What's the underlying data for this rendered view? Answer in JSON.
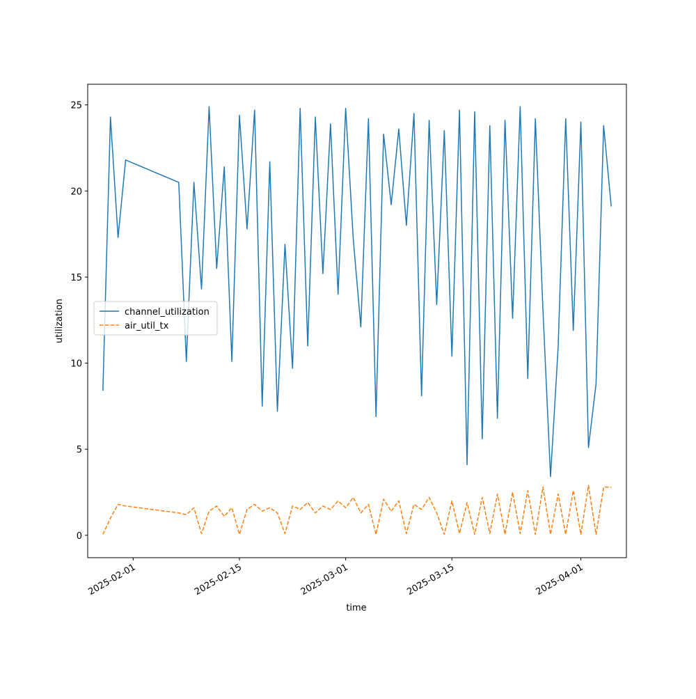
{
  "chart_data": {
    "type": "line",
    "xlabel": "time",
    "ylabel": "utilization",
    "x": [
      "2025-01-28",
      "2025-01-29",
      "2025-01-30",
      "2025-01-31",
      "2025-02-07",
      "2025-02-08",
      "2025-02-09",
      "2025-02-10",
      "2025-02-11",
      "2025-02-12",
      "2025-02-13",
      "2025-02-14",
      "2025-02-15",
      "2025-02-16",
      "2025-02-17",
      "2025-02-18",
      "2025-02-19",
      "2025-02-20",
      "2025-02-21",
      "2025-02-22",
      "2025-02-23",
      "2025-02-24",
      "2025-02-25",
      "2025-02-26",
      "2025-02-27",
      "2025-02-28",
      "2025-03-01",
      "2025-03-02",
      "2025-03-03",
      "2025-03-04",
      "2025-03-05",
      "2025-03-06",
      "2025-03-07",
      "2025-03-08",
      "2025-03-09",
      "2025-03-10",
      "2025-03-11",
      "2025-03-12",
      "2025-03-13",
      "2025-03-14",
      "2025-03-15",
      "2025-03-16",
      "2025-03-17",
      "2025-03-18",
      "2025-03-19",
      "2025-03-20",
      "2025-03-21",
      "2025-03-22",
      "2025-03-23",
      "2025-03-24",
      "2025-03-25",
      "2025-03-26",
      "2025-03-27",
      "2025-03-28",
      "2025-03-29",
      "2025-03-30",
      "2025-03-31",
      "2025-04-01",
      "2025-04-02",
      "2025-04-03",
      "2025-04-04",
      "2025-04-05"
    ],
    "series": [
      {
        "name": "channel_utilization",
        "color": "#1f77b4",
        "dash": false,
        "values": [
          8.4,
          24.3,
          17.3,
          21.8,
          20.5,
          10.1,
          20.5,
          14.3,
          24.9,
          15.5,
          21.4,
          10.1,
          24.4,
          17.8,
          24.7,
          7.5,
          21.7,
          7.2,
          16.9,
          9.7,
          24.8,
          11.0,
          24.3,
          15.2,
          23.9,
          14.0,
          24.8,
          17.2,
          12.1,
          24.2,
          6.9,
          23.3,
          19.2,
          23.6,
          18.0,
          24.5,
          8.1,
          24.1,
          13.4,
          23.5,
          10.4,
          24.7,
          4.1,
          24.6,
          5.6,
          23.8,
          6.8,
          24.1,
          12.6,
          24.9,
          9.1,
          24.2,
          13.1,
          3.4,
          10.9,
          24.2,
          11.9,
          24.0,
          5.1,
          8.8,
          23.8,
          19.1
        ]
      },
      {
        "name": "air_util_tx",
        "color": "#ff7f0e",
        "dash": true,
        "values": [
          0.05,
          1.0,
          1.8,
          1.7,
          1.3,
          1.2,
          1.6,
          0.1,
          1.4,
          1.7,
          1.1,
          1.6,
          0.05,
          1.5,
          1.8,
          1.4,
          1.6,
          1.3,
          0.1,
          1.7,
          1.5,
          1.9,
          1.3,
          1.7,
          1.5,
          2.0,
          1.6,
          2.2,
          1.3,
          1.8,
          0.05,
          2.1,
          1.4,
          2.0,
          0.1,
          1.8,
          1.5,
          2.2,
          1.3,
          0.05,
          2.0,
          0.1,
          1.9,
          0.05,
          2.2,
          0.1,
          2.4,
          0.05,
          2.5,
          0.1,
          2.6,
          0.05,
          2.8,
          0.05,
          2.4,
          0.05,
          2.6,
          0.05,
          2.9,
          0.05,
          2.8,
          2.8
        ]
      }
    ],
    "xlim": [
      "2025-01-26",
      "2025-04-07"
    ],
    "xticks": [
      "2025-02-01",
      "2025-02-15",
      "2025-03-01",
      "2025-03-15",
      "2025-04-01"
    ],
    "ylim": [
      -1.3,
      26.2
    ],
    "yticks": [
      0,
      5,
      10,
      15,
      20,
      25
    ],
    "legend": "center left",
    "grid": false
  }
}
